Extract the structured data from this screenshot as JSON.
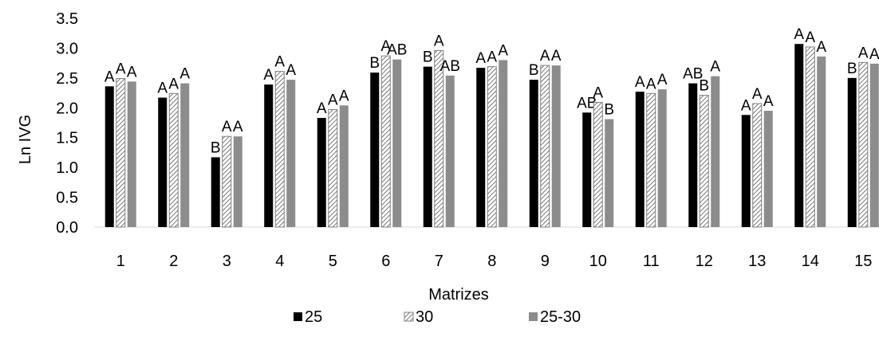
{
  "chart_data": {
    "type": "bar",
    "xlabel": "Matrizes",
    "ylabel": "Ln IVG",
    "ylim": [
      0,
      3.5
    ],
    "yticks": [
      "0.0",
      "0.5",
      "1.0",
      "1.5",
      "2.0",
      "2.5",
      "3.0",
      "3.5"
    ],
    "grid": false,
    "legend_position": "bottom",
    "categories": [
      "1",
      "2",
      "3",
      "4",
      "5",
      "6",
      "7",
      "8",
      "9",
      "10",
      "11",
      "12",
      "13",
      "14",
      "15"
    ],
    "series": [
      {
        "name": "25",
        "fill": "solid-black",
        "color": "#000000",
        "values": [
          2.36,
          2.17,
          1.17,
          2.39,
          1.83,
          2.59,
          2.69,
          2.67,
          2.47,
          1.92,
          2.27,
          2.41,
          1.88,
          3.07,
          2.5
        ],
        "letters": [
          "A",
          "A",
          "B",
          "A",
          "A",
          "B",
          "B",
          "A",
          "B",
          "AB",
          "A",
          "AB",
          "A",
          "A",
          "B"
        ]
      },
      {
        "name": "30",
        "fill": "diagonal-hatch",
        "color": "#ffffff",
        "values": [
          2.49,
          2.24,
          1.52,
          2.61,
          1.97,
          2.87,
          2.96,
          2.69,
          2.71,
          2.09,
          2.24,
          2.21,
          2.07,
          3.02,
          2.76
        ],
        "letters": [
          "A",
          "A",
          "A",
          "A",
          "A",
          "A",
          "A",
          "A",
          "A",
          "A",
          "A",
          "B",
          "A",
          "A",
          "A"
        ]
      },
      {
        "name": "25-30",
        "fill": "solid-gray",
        "color": "#8c8c8c",
        "values": [
          2.44,
          2.41,
          1.52,
          2.47,
          2.04,
          2.81,
          2.54,
          2.8,
          2.71,
          1.81,
          2.31,
          2.53,
          1.95,
          2.86,
          2.74
        ],
        "letters": [
          "A",
          "A",
          "A",
          "A",
          "A",
          "AB",
          "AB",
          "A",
          "A",
          "B",
          "A",
          "A",
          "A",
          "A",
          "A"
        ]
      }
    ]
  }
}
